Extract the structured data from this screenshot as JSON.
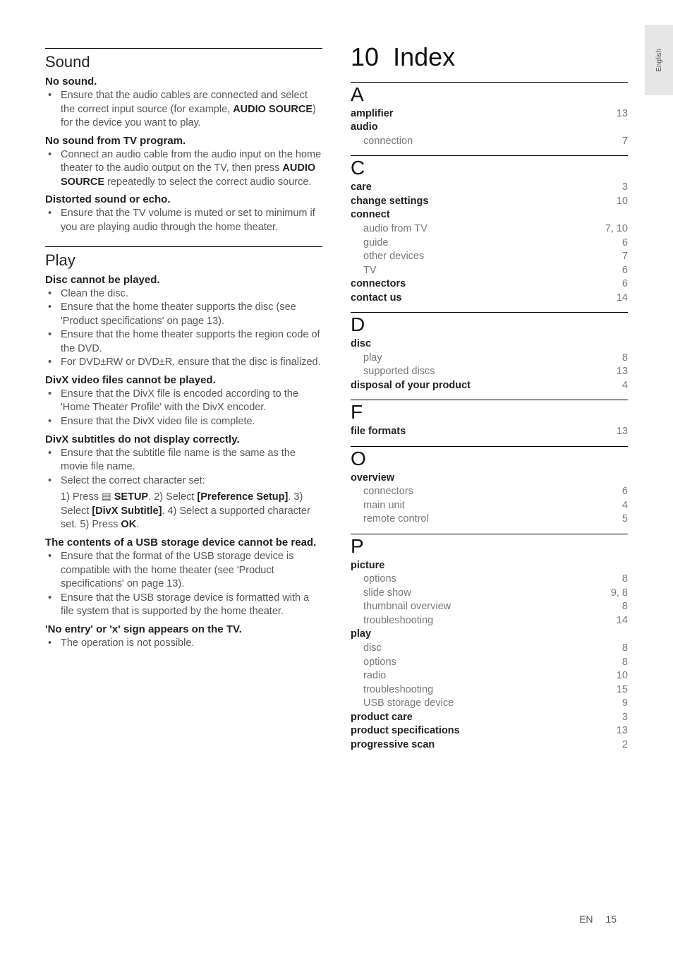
{
  "side_tab": "English",
  "left": {
    "sound": {
      "heading": "Sound",
      "blocks": [
        {
          "sub": "No sound.",
          "bullets": [
            {
              "pre": "Ensure that the audio cables are connected and select the correct input source (for example, ",
              "bold1": "AUDIO SOURCE",
              "post1": ") for the device you want to play."
            }
          ]
        },
        {
          "sub": "No sound from TV program.",
          "bullets": [
            {
              "pre": "Connect an audio cable from the audio input on the home theater to the audio output on the TV, then press ",
              "bold1": "AUDIO SOURCE",
              "post1": " repeatedly to select the correct audio source."
            }
          ]
        },
        {
          "sub": "Distorted sound or echo.",
          "bullets": [
            {
              "pre": "Ensure that the TV volume is muted or set to minimum if you are playing audio through the home theater."
            }
          ]
        }
      ]
    },
    "play": {
      "heading": "Play",
      "blocks": [
        {
          "sub": "Disc cannot be played.",
          "bullets": [
            {
              "pre": "Clean the disc."
            },
            {
              "pre": "Ensure that the home theater supports the disc (see 'Product specifications' on page 13)."
            },
            {
              "pre": "Ensure that the home theater supports the region code of the DVD."
            },
            {
              "pre": "For DVD±RW or DVD±R, ensure that the disc is finalized."
            }
          ]
        },
        {
          "sub": "DivX video files cannot be played.",
          "bullets": [
            {
              "pre": "Ensure that the DivX file is encoded according to the 'Home Theater Profile' with the DivX encoder."
            },
            {
              "pre": "Ensure that the DivX video file is complete."
            }
          ]
        },
        {
          "sub": "DivX subtitles do not display correctly.",
          "bullets": [
            {
              "pre": "Ensure that the subtitle file name is the same as the movie file name."
            },
            {
              "pre": "Select the correct character set:"
            }
          ],
          "continued": {
            "t1": "1) Press ",
            "icon": "▤",
            "b1": " SETUP",
            "t2": ". 2) Select ",
            "b2": "[Preference Setup]",
            "t3": ". 3) Select ",
            "b3": "[DivX Subtitle]",
            "t4": ". 4) Select a supported character set. 5) Press ",
            "b4": "OK",
            "t5": "."
          }
        },
        {
          "sub": "The contents of a USB storage device cannot be read.",
          "bullets": [
            {
              "pre": "Ensure that the format of the USB storage device is compatible with the home theater (see 'Product specifications' on page 13)."
            },
            {
              "pre": "Ensure that the USB storage device is formatted with a file system that is supported by the home theater."
            }
          ]
        },
        {
          "sub": "'No entry' or 'x' sign appears on the TV.",
          "bullets": [
            {
              "pre": "The operation is not possible."
            }
          ]
        }
      ]
    }
  },
  "right": {
    "chapter_no": "10",
    "chapter_title": "Index",
    "groups": [
      {
        "letter": "A",
        "rows": [
          {
            "label": "amplifier",
            "page": "13",
            "bold": true
          },
          {
            "label": "audio",
            "page": "",
            "bold": true
          },
          {
            "label": "connection",
            "page": "7",
            "child": true
          }
        ]
      },
      {
        "letter": "C",
        "rows": [
          {
            "label": "care",
            "page": "3",
            "bold": true
          },
          {
            "label": "change settings",
            "page": "10",
            "bold": true
          },
          {
            "label": "connect",
            "page": "",
            "bold": true
          },
          {
            "label": "audio from TV",
            "page": "7, 10",
            "child": true
          },
          {
            "label": "guide",
            "page": "6",
            "child": true
          },
          {
            "label": "other devices",
            "page": "7",
            "child": true
          },
          {
            "label": "TV",
            "page": "6",
            "child": true
          },
          {
            "label": "connectors",
            "page": "6",
            "bold": true
          },
          {
            "label": "contact us",
            "page": "14",
            "bold": true
          }
        ]
      },
      {
        "letter": "D",
        "rows": [
          {
            "label": "disc",
            "page": "",
            "bold": true
          },
          {
            "label": "play",
            "page": "8",
            "child": true
          },
          {
            "label": "supported discs",
            "page": "13",
            "child": true
          },
          {
            "label": "disposal of your product",
            "page": "4",
            "bold": true
          }
        ]
      },
      {
        "letter": "F",
        "rows": [
          {
            "label": "file formats",
            "page": "13",
            "bold": true
          }
        ]
      },
      {
        "letter": "O",
        "rows": [
          {
            "label": "overview",
            "page": "",
            "bold": true
          },
          {
            "label": "connectors",
            "page": "6",
            "child": true
          },
          {
            "label": "main unit",
            "page": "4",
            "child": true
          },
          {
            "label": "remote control",
            "page": "5",
            "child": true
          }
        ]
      },
      {
        "letter": "P",
        "rows": [
          {
            "label": "picture",
            "page": "",
            "bold": true
          },
          {
            "label": "options",
            "page": "8",
            "child": true
          },
          {
            "label": "slide show",
            "page": "9, 8",
            "child": true
          },
          {
            "label": "thumbnail overview",
            "page": "8",
            "child": true
          },
          {
            "label": "troubleshooting",
            "page": "14",
            "child": true
          },
          {
            "label": "play",
            "page": "",
            "bold": true
          },
          {
            "label": "disc",
            "page": "8",
            "child": true
          },
          {
            "label": "options",
            "page": "8",
            "child": true
          },
          {
            "label": "radio",
            "page": "10",
            "child": true
          },
          {
            "label": "troubleshooting",
            "page": "15",
            "child": true
          },
          {
            "label": "USB storage device",
            "page": "9",
            "child": true
          },
          {
            "label": "product care",
            "page": "3",
            "bold": true
          },
          {
            "label": "product specifications",
            "page": "13",
            "bold": true
          },
          {
            "label": "progressive scan",
            "page": "2",
            "bold": true
          }
        ]
      }
    ]
  },
  "footer": {
    "lang": "EN",
    "page": "15"
  }
}
